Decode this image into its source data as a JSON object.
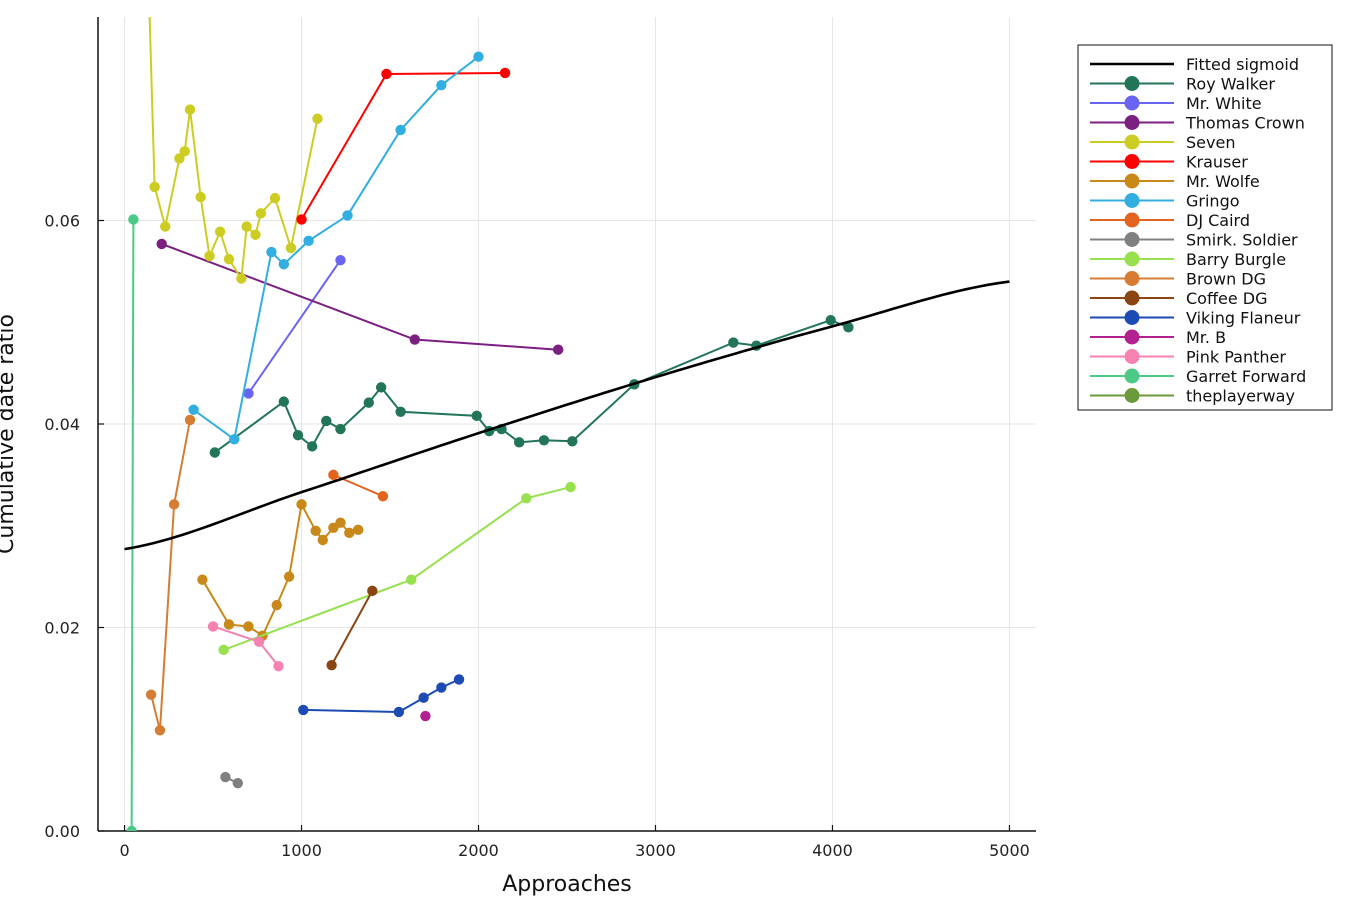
{
  "chart_data": {
    "type": "scatter",
    "title": "",
    "xlabel": "Approaches",
    "ylabel": "Cumulative date ratio",
    "xlim": [
      -150,
      5150
    ],
    "ylim": [
      0,
      0.08
    ],
    "xticks": [
      0,
      1000,
      2000,
      3000,
      4000,
      5000
    ],
    "xtick_labels": [
      "0",
      "1000",
      "2000",
      "3000",
      "4000",
      "5000"
    ],
    "yticks": [
      0,
      0.02,
      0.04,
      0.06
    ],
    "ytick_labels": [
      "0.00",
      "0.02",
      "0.04",
      "0.06"
    ],
    "grid": true,
    "legend_position": "top-right",
    "fit": {
      "name": "Fitted sigmoid",
      "color": "#000000",
      "x": [
        0,
        1000,
        2000,
        3000,
        4000,
        5000
      ],
      "y": [
        0.0277,
        0.0333,
        0.0391,
        0.0446,
        0.0496,
        0.054
      ]
    },
    "series": [
      {
        "name": "Roy Walker",
        "color": "#227557",
        "x": [
          510,
          900,
          980,
          1060,
          1140,
          1220,
          1380,
          1450,
          1560,
          1990,
          2060,
          2130,
          2230,
          2370,
          2530,
          2880,
          3440,
          3570,
          3990,
          4090
        ],
        "y": [
          0.0372,
          0.0422,
          0.0389,
          0.0378,
          0.0403,
          0.0395,
          0.0421,
          0.0436,
          0.0412,
          0.0408,
          0.0393,
          0.0395,
          0.0382,
          0.0384,
          0.0383,
          0.0439,
          0.048,
          0.0477,
          0.0502,
          0.0495
        ]
      },
      {
        "name": "Mr. White",
        "color": "#6a64f2",
        "x": [
          700,
          1220
        ],
        "y": [
          0.043,
          0.0561
        ]
      },
      {
        "name": "Thomas Crown",
        "color": "#7b1f80",
        "x": [
          210,
          1640,
          2450
        ],
        "y": [
          0.0577,
          0.0483,
          0.0473
        ]
      },
      {
        "name": "Seven",
        "color": "#cccc22",
        "x": [
          140,
          170,
          230,
          310,
          340,
          370,
          430,
          480,
          540,
          590,
          660,
          690,
          740,
          770,
          850,
          940,
          1090
        ],
        "y": [
          0.081,
          0.0633,
          0.0594,
          0.0661,
          0.0668,
          0.0709,
          0.0623,
          0.0565,
          0.0589,
          0.0562,
          0.0543,
          0.0594,
          0.0586,
          0.0607,
          0.0622,
          0.0573,
          0.07
        ]
      },
      {
        "name": "Krauser",
        "color": "#ff0000",
        "x": [
          1000,
          1480,
          2150
        ],
        "y": [
          0.0601,
          0.0744,
          0.0745
        ]
      },
      {
        "name": "Mr. Wolfe",
        "color": "#c8891a",
        "x": [
          440,
          590,
          700,
          780,
          860,
          930,
          1000,
          1080,
          1120,
          1180,
          1220,
          1270,
          1320
        ],
        "y": [
          0.0247,
          0.0203,
          0.0201,
          0.0192,
          0.0222,
          0.025,
          0.0321,
          0.0295,
          0.0286,
          0.0298,
          0.0303,
          0.0293,
          0.0296
        ]
      },
      {
        "name": "Gringo",
        "color": "#32aee0",
        "x": [
          390,
          620,
          830,
          900,
          1040,
          1260,
          1560,
          1790,
          2000
        ],
        "y": [
          0.0414,
          0.0385,
          0.0569,
          0.0557,
          0.058,
          0.0605,
          0.0689,
          0.0733,
          0.0761
        ]
      },
      {
        "name": "DJ Caird",
        "color": "#e2641f",
        "x": [
          1180,
          1460
        ],
        "y": [
          0.035,
          0.0329
        ]
      },
      {
        "name": "Smirk. Soldier",
        "color": "#808080",
        "x": [
          570,
          640
        ],
        "y": [
          0.0053,
          0.0047
        ]
      },
      {
        "name": "Barry Burgle",
        "color": "#98e04e",
        "x": [
          560,
          1620,
          2270,
          2520
        ],
        "y": [
          0.0178,
          0.0247,
          0.0327,
          0.0338
        ]
      },
      {
        "name": "Brown DG",
        "color": "#d67d33",
        "x": [
          150,
          200,
          280,
          370
        ],
        "y": [
          0.0134,
          0.0099,
          0.0321,
          0.0404
        ]
      },
      {
        "name": "Coffee DG",
        "color": "#8b4513",
        "x": [
          1170,
          1400
        ],
        "y": [
          0.0163,
          0.0236
        ]
      },
      {
        "name": "Viking Flaneur",
        "color": "#1c4bb3",
        "x": [
          1010,
          1550,
          1690,
          1790,
          1890
        ],
        "y": [
          0.0119,
          0.0117,
          0.0131,
          0.0141,
          0.0149
        ]
      },
      {
        "name": "Mr. B",
        "color": "#b3208f",
        "x": [
          1700
        ],
        "y": [
          0.0113
        ]
      },
      {
        "name": "Pink Panther",
        "color": "#f582b1",
        "x": [
          500,
          760,
          870
        ],
        "y": [
          0.0201,
          0.0186,
          0.0162
        ]
      },
      {
        "name": "Garret Forward",
        "color": "#4cc986",
        "x": [
          50,
          40
        ],
        "y": [
          0.0601,
          0.0
        ]
      },
      {
        "name": "theplayerway",
        "color": "#6b9a3a",
        "x": [],
        "y": []
      }
    ]
  }
}
